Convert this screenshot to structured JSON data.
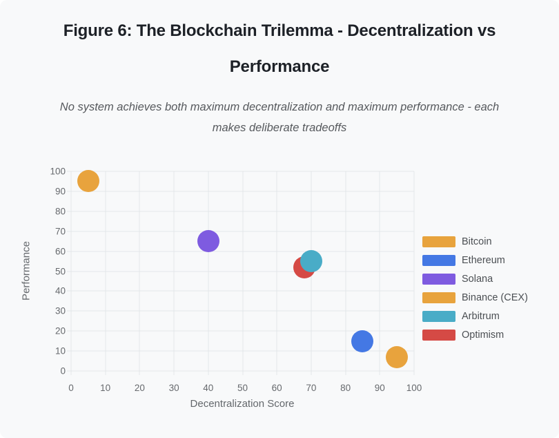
{
  "page": {
    "title_full": "Figure 6: The Blockchain Trilemma - Decentralization vs Performance",
    "title_lines": [
      "Figure 6: The Blockchain Trilemma - Decentralization vs",
      "Performance"
    ],
    "subtitle_full": "No system achieves both maximum decentralization and maximum performance - each makes deliberate tradeoffs",
    "subtitle_lines": [
      "No system achieves both maximum decentralization and maximum performance - each",
      "makes deliberate tradeoffs"
    ]
  },
  "chart_data": {
    "type": "scatter",
    "title": "Figure 6: The Blockchain Trilemma - Decentralization vs Performance",
    "xlabel": "Decentralization Score",
    "ylabel": "Performance",
    "xlim": [
      0,
      100
    ],
    "ylim": [
      0,
      100
    ],
    "x_ticks": [
      0,
      10,
      20,
      30,
      40,
      50,
      60,
      70,
      80,
      90,
      100
    ],
    "y_ticks": [
      0,
      10,
      20,
      30,
      40,
      50,
      60,
      70,
      80,
      90,
      100
    ],
    "grid": true,
    "legend_position": "right",
    "marker_radius_px": 16,
    "series": [
      {
        "name": "Bitcoin",
        "color": "#E8A33D",
        "z": 1,
        "points": [
          {
            "x": 95,
            "y": 7
          }
        ]
      },
      {
        "name": "Ethereum",
        "color": "#4478E4",
        "z": 2,
        "points": [
          {
            "x": 85,
            "y": 15
          }
        ]
      },
      {
        "name": "Solana",
        "color": "#7E5BE0",
        "z": 3,
        "points": [
          {
            "x": 40,
            "y": 65
          }
        ]
      },
      {
        "name": "Binance (CEX)",
        "color": "#E8A33D",
        "z": 4,
        "points": [
          {
            "x": 5,
            "y": 95
          }
        ]
      },
      {
        "name": "Arbitrum",
        "color": "#49ACC7",
        "z": 6,
        "points": [
          {
            "x": 70,
            "y": 55
          }
        ]
      },
      {
        "name": "Optimism",
        "color": "#D54A45",
        "z": 5,
        "points": [
          {
            "x": 68,
            "y": 52
          }
        ]
      }
    ]
  },
  "colors": {
    "background": "#F8F9FA",
    "grid": "#E3E6E9",
    "tick_text": "#66696D",
    "axis_title_text": "#63676B",
    "title_text": "#1D2127",
    "subtitle_text": "#56595D",
    "legend_text": "#4B4F53"
  }
}
